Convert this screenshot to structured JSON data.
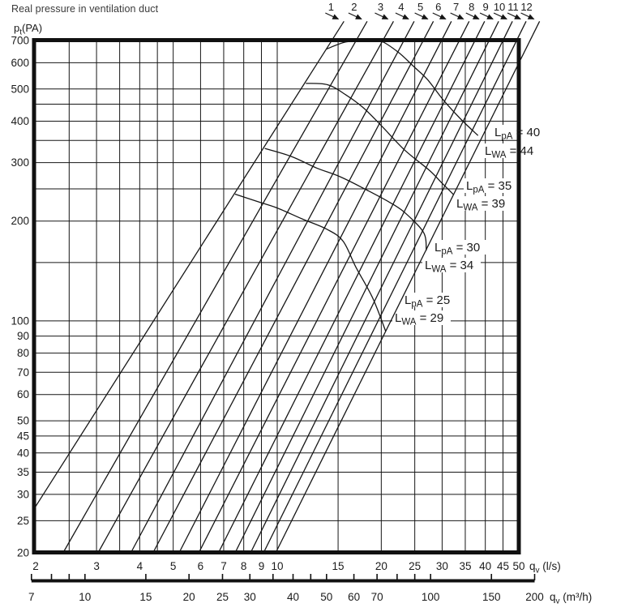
{
  "title": "Real pressure in ventilation duct",
  "y_axis": {
    "name_base": "p",
    "name_sub": "t",
    "name_unit": "(PA)",
    "labeled_ticks": [
      700,
      600,
      500,
      400,
      300,
      200,
      100,
      90,
      80,
      70,
      60,
      50,
      45,
      40,
      35,
      30,
      25,
      20
    ],
    "gridlines": [
      25,
      30,
      35,
      40,
      45,
      50,
      60,
      70,
      80,
      90,
      100,
      150,
      200,
      250,
      300,
      350,
      400,
      450,
      500,
      600
    ],
    "range": [
      20,
      700
    ]
  },
  "x_axis_ls": {
    "unit_base": "q",
    "unit_sub": "v",
    "unit_rest": " (l/s)",
    "labeled_ticks": [
      2,
      3,
      4,
      5,
      6,
      7,
      8,
      9,
      10,
      15,
      20,
      25,
      30,
      35,
      40,
      45,
      50
    ],
    "gridlines": [
      2.5,
      3,
      3.5,
      4,
      4.5,
      5,
      6,
      7,
      8,
      9,
      10,
      15,
      20,
      25,
      30,
      35,
      40,
      45
    ],
    "range": [
      2,
      50
    ]
  },
  "x_axis_m3h": {
    "unit_base": "q",
    "unit_sub": "v",
    "unit_rest": " (m³/h)",
    "labeled_ticks": [
      7,
      10,
      15,
      20,
      25,
      30,
      40,
      50,
      60,
      70,
      100,
      150,
      200
    ],
    "all_ticks": [
      7,
      8,
      9,
      10,
      15,
      20,
      25,
      30,
      35,
      40,
      45,
      50,
      60,
      70,
      80,
      90,
      100,
      150,
      200
    ],
    "conversion_factor_ls_to_m3h": 3.6
  },
  "damper_positions": [
    "1",
    "2",
    "3",
    "4",
    "5",
    "6",
    "7",
    "8",
    "9",
    "10",
    "11",
    "12"
  ],
  "noise_label_parts": {
    "lp_base": "L",
    "lp_sub": "pA",
    "lw_base": "L",
    "lw_sub": "WA",
    "eq": "="
  },
  "chart_data": {
    "type": "line",
    "title": "Real pressure in ventilation duct",
    "xlabel": "qv (l/s) / qv (m3/h)",
    "ylabel": "pt (PA)",
    "x_scale": "log",
    "y_scale": "log",
    "xlim_ls": [
      2,
      50
    ],
    "ylim_pa": [
      20,
      700
    ],
    "grid": "on",
    "damper_lines": [
      {
        "id": "1",
        "q_start": 2.0,
        "p_start": 27.6,
        "q_end": 15.6,
        "p_end": 800
      },
      {
        "id": "2",
        "q_start": 2.4,
        "p_start": 20,
        "q_end": 18.2,
        "p_end": 800
      },
      {
        "id": "3",
        "q_start": 3.03,
        "p_start": 20,
        "q_end": 21.7,
        "p_end": 800
      },
      {
        "id": "4",
        "q_start": 3.77,
        "p_start": 20,
        "q_end": 24.9,
        "p_end": 800
      },
      {
        "id": "5",
        "q_start": 4.37,
        "p_start": 20,
        "q_end": 28.3,
        "p_end": 800
      },
      {
        "id": "6",
        "q_start": 5.2,
        "p_start": 20,
        "q_end": 31.9,
        "p_end": 800
      },
      {
        "id": "7",
        "q_start": 5.93,
        "p_start": 20,
        "q_end": 35.9,
        "p_end": 800
      },
      {
        "id": "8",
        "q_start": 6.76,
        "p_start": 20,
        "q_end": 39.8,
        "p_end": 800
      },
      {
        "id": "9",
        "q_start": 7.55,
        "p_start": 20,
        "q_end": 43.7,
        "p_end": 800
      },
      {
        "id": "10",
        "q_start": 8.37,
        "p_start": 20,
        "q_end": 47.9,
        "p_end": 800
      },
      {
        "id": "11",
        "q_start": 9.13,
        "p_start": 20,
        "q_end": 52.5,
        "p_end": 800
      },
      {
        "id": "12",
        "q_start": 9.9,
        "p_start": 20,
        "q_end": 57.4,
        "p_end": 800
      }
    ],
    "noise_curves": [
      {
        "lpa": "25",
        "lwa": "29",
        "points": [
          [
            7.55,
            241
          ],
          [
            8.88,
            228
          ],
          [
            10.0,
            219
          ],
          [
            11.8,
            203
          ],
          [
            13.9,
            189
          ],
          [
            15.5,
            174
          ],
          [
            16.9,
            145
          ],
          [
            18.9,
            117
          ],
          [
            20.6,
            93
          ]
        ]
      },
      {
        "lpa": "30",
        "lwa": "34",
        "points": [
          [
            9.2,
            331
          ],
          [
            11.0,
            313
          ],
          [
            13.0,
            289
          ],
          [
            15.2,
            272
          ],
          [
            17.9,
            250
          ],
          [
            21.1,
            228
          ],
          [
            23.4,
            212
          ],
          [
            26.5,
            185
          ],
          [
            27.0,
            163
          ]
        ]
      },
      {
        "lpa": "35",
        "lwa": "39",
        "points": [
          [
            12.1,
            520
          ],
          [
            14.0,
            515
          ],
          [
            15.8,
            480
          ],
          [
            17.7,
            440
          ],
          [
            20.0,
            388
          ],
          [
            23.4,
            327
          ],
          [
            27.6,
            284
          ],
          [
            30.0,
            260
          ],
          [
            32.4,
            240
          ]
        ]
      },
      {
        "lpa": "40",
        "lwa": "44",
        "points": [
          [
            13.9,
            660
          ],
          [
            15.8,
            693
          ],
          [
            18.2,
            699
          ],
          [
            20.0,
            697
          ],
          [
            22.5,
            643
          ],
          [
            24.8,
            585
          ],
          [
            27.2,
            534
          ],
          [
            30.1,
            466
          ],
          [
            33.7,
            409
          ],
          [
            38.1,
            362
          ]
        ]
      }
    ]
  }
}
